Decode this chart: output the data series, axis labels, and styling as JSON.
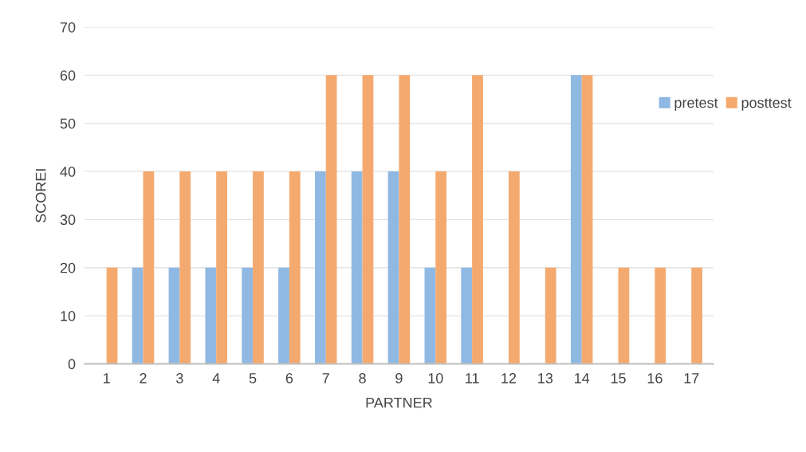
{
  "chart_data": {
    "type": "bar",
    "xlabel": "PARTNER",
    "ylabel": "SCOREI",
    "categories": [
      "1",
      "2",
      "3",
      "4",
      "5",
      "6",
      "7",
      "8",
      "9",
      "10",
      "11",
      "12",
      "13",
      "14",
      "15",
      "16",
      "17"
    ],
    "series": [
      {
        "name": "pretest",
        "color": "#8fb8e3",
        "values": [
          0,
          20,
          20,
          20,
          20,
          20,
          40,
          40,
          40,
          20,
          20,
          0,
          0,
          60,
          0,
          0,
          0
        ]
      },
      {
        "name": "posttest",
        "color": "#f4a96e",
        "values": [
          20,
          40,
          40,
          40,
          40,
          40,
          60,
          60,
          60,
          40,
          60,
          40,
          20,
          60,
          20,
          20,
          20
        ]
      }
    ],
    "ylim": [
      0,
      70
    ],
    "yticks": [
      0,
      10,
      20,
      30,
      40,
      50,
      60,
      70
    ],
    "grid": "y",
    "legend": "right"
  }
}
